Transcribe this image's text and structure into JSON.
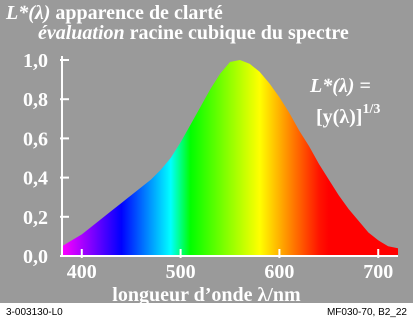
{
  "title": {
    "line1_symbol": "L*(λ)",
    "line1_rest": " apparence de clarté",
    "line2_italic": "évaluation",
    "line2_rest": " racine cubique du spectre"
  },
  "formula": {
    "line1": "L*(λ) =",
    "line2_base": "[y(λ)]",
    "line2_exp": "1/3"
  },
  "footer": {
    "left": "3-003130-L0",
    "right": "MF030-70, B2_22"
  },
  "colors": {
    "background": "#9a9a9a",
    "text": "#ffffff"
  },
  "chart_data": {
    "type": "area",
    "title": "L*(λ) apparence de clarté",
    "subtitle": "évaluation racine cubique du spectre",
    "xlabel": "longueur d’onde λ/nm",
    "ylabel": "",
    "xlim": [
      380,
      720
    ],
    "ylim": [
      0,
      1.0
    ],
    "xticks": [
      400,
      500,
      600,
      700
    ],
    "yticks": [
      0.0,
      0.2,
      0.4,
      0.6,
      0.8,
      1.0
    ],
    "ytick_labels": [
      "0,0",
      "0,2",
      "0,4",
      "0,6",
      "0,8",
      "1,0"
    ],
    "x": [
      380,
      390,
      400,
      410,
      420,
      430,
      440,
      450,
      460,
      470,
      480,
      490,
      500,
      510,
      520,
      530,
      540,
      550,
      560,
      570,
      580,
      590,
      600,
      610,
      620,
      630,
      640,
      650,
      660,
      670,
      680,
      690,
      700,
      710,
      720
    ],
    "y": [
      0.05,
      0.08,
      0.11,
      0.15,
      0.19,
      0.23,
      0.27,
      0.31,
      0.35,
      0.39,
      0.44,
      0.5,
      0.58,
      0.67,
      0.76,
      0.85,
      0.93,
      0.99,
      1.0,
      0.98,
      0.94,
      0.88,
      0.81,
      0.73,
      0.64,
      0.56,
      0.47,
      0.39,
      0.31,
      0.24,
      0.18,
      0.12,
      0.08,
      0.05,
      0.04
    ],
    "fill": "spectral colours under the curve",
    "grid": false
  }
}
